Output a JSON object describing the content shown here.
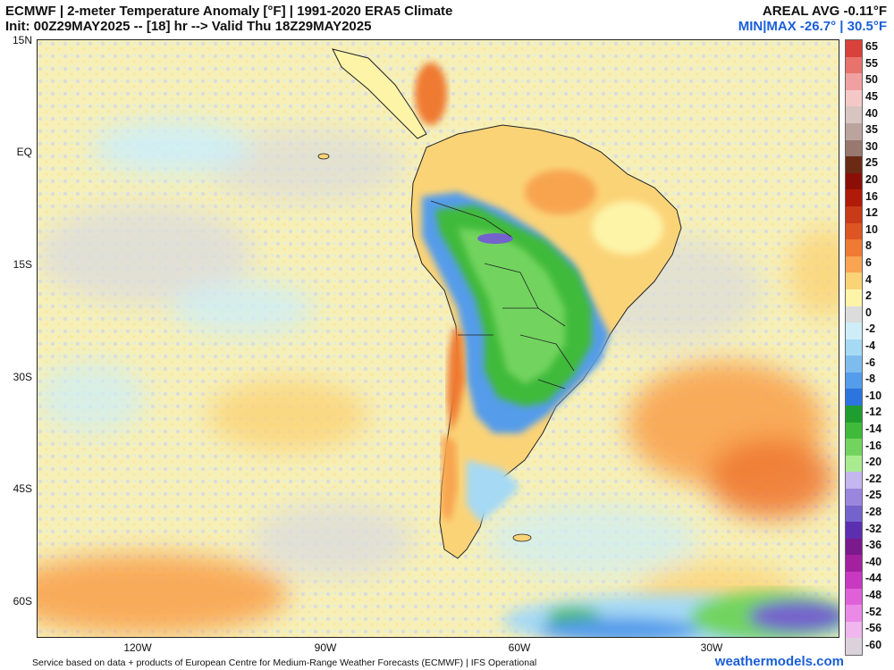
{
  "header": {
    "title_line1": "ECMWF | 2-meter Temperature Anomaly [°F] | 1991-2020 ERA5 Climate",
    "title_line2": "Init: 00Z29MAY2025 -- [18] hr --> Valid Thu 18Z29MAY2025",
    "areal_avg": "AREAL AVG -0.11°F",
    "min_max": "MIN|MAX -26.7° | 30.5°F"
  },
  "map": {
    "lat_labels": [
      "15N",
      "EQ",
      "15S",
      "30S",
      "45S",
      "60S"
    ],
    "lon_labels": [
      "120W",
      "90W",
      "60W",
      "30W"
    ]
  },
  "colorbar": {
    "labels": [
      "65",
      "55",
      "50",
      "45",
      "40",
      "35",
      "30",
      "25",
      "20",
      "16",
      "12",
      "10",
      "8",
      "6",
      "4",
      "2",
      "0",
      "-2",
      "-4",
      "-6",
      "-8",
      "-10",
      "-12",
      "-14",
      "-16",
      "-20",
      "-22",
      "-25",
      "-28",
      "-32",
      "-36",
      "-40",
      "-44",
      "-48",
      "-52",
      "-56",
      "-60"
    ],
    "colors": [
      "#d9413b",
      "#e8736c",
      "#f0a0a0",
      "#f5c8c8",
      "#d8c4c0",
      "#bca49e",
      "#98786f",
      "#6b2a14",
      "#8b0f06",
      "#b01a08",
      "#c83a18",
      "#dd5522",
      "#ef7a33",
      "#f8a450",
      "#fbd377",
      "#fdf4a8",
      "#dcdcdc",
      "#cdeef8",
      "#a6d9f4",
      "#7fbcee",
      "#559cea",
      "#2c74de",
      "#1e9e2e",
      "#3fba3a",
      "#72d45f",
      "#a9ec90",
      "#c4b6ee",
      "#9a86dc",
      "#7463cc",
      "#5b2fb0",
      "#7a1a8c",
      "#a3209e",
      "#c838c0",
      "#e060d8",
      "#eb8ae6",
      "#f0b6ee",
      "#dcd2dc"
    ]
  },
  "footer": {
    "credit": "Service based on data + products of European Centre for Medium-Range Weather Forecasts (ECMWF) | IFS Operational",
    "brand": "weathermodels.com"
  }
}
